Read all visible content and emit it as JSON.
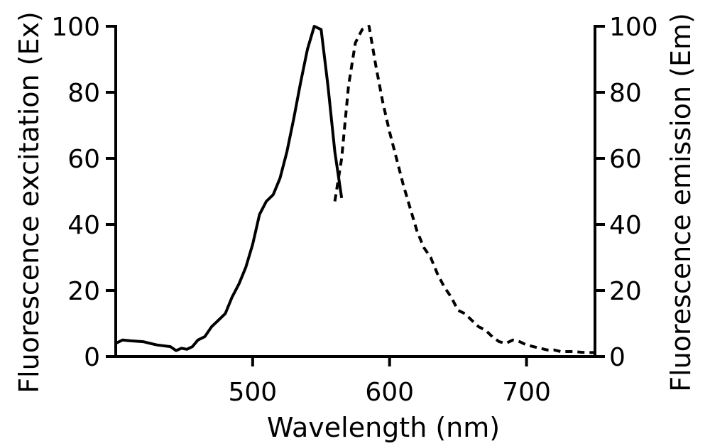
{
  "chart_data": {
    "type": "line",
    "title": "",
    "xlabel": "Wavelength (nm)",
    "ylabel_left": "Fluorescence excitation (Ex)",
    "ylabel_right": "Fluorescence emission (Em)",
    "xlim": [
      400,
      750
    ],
    "ylim": [
      0,
      100
    ],
    "x_ticks": [
      500,
      600,
      700
    ],
    "y_ticks": [
      0,
      20,
      40,
      60,
      80,
      100
    ],
    "grid": false,
    "legend": "none",
    "series": [
      {
        "style": "solid",
        "axis": "left",
        "x": [
          400,
          405,
          410,
          420,
          425,
          430,
          440,
          444,
          448,
          452,
          456,
          460,
          465,
          470,
          475,
          480,
          485,
          490,
          495,
          500,
          505,
          510,
          515,
          520,
          525,
          530,
          535,
          540,
          545,
          550,
          555,
          560,
          565
        ],
        "y": [
          4,
          5,
          4.8,
          4.5,
          4,
          3.5,
          3,
          1.8,
          2.5,
          2.2,
          3,
          5,
          6,
          9,
          11,
          13,
          18,
          22,
          27,
          34,
          43,
          47,
          49,
          54,
          62,
          72,
          83,
          93,
          100,
          99,
          82,
          62,
          48
        ]
      },
      {
        "style": "dashed",
        "axis": "right",
        "x": [
          560,
          565,
          570,
          575,
          580,
          585,
          590,
          595,
          600,
          605,
          610,
          615,
          620,
          625,
          630,
          635,
          640,
          645,
          650,
          655,
          660,
          665,
          670,
          675,
          680,
          685,
          690,
          695,
          700,
          705,
          710,
          715,
          720,
          725,
          730,
          735,
          740,
          745,
          750
        ],
        "y": [
          47,
          60,
          82,
          95,
          99,
          100,
          88,
          77,
          68,
          60,
          52,
          45,
          38,
          33,
          30,
          25,
          21,
          18,
          14,
          13,
          11,
          9,
          8,
          6,
          4.5,
          4,
          5,
          4.5,
          3.5,
          3,
          2.5,
          2,
          2,
          1.5,
          1.5,
          1.5,
          1.3,
          1.2,
          1.2
        ]
      }
    ]
  }
}
